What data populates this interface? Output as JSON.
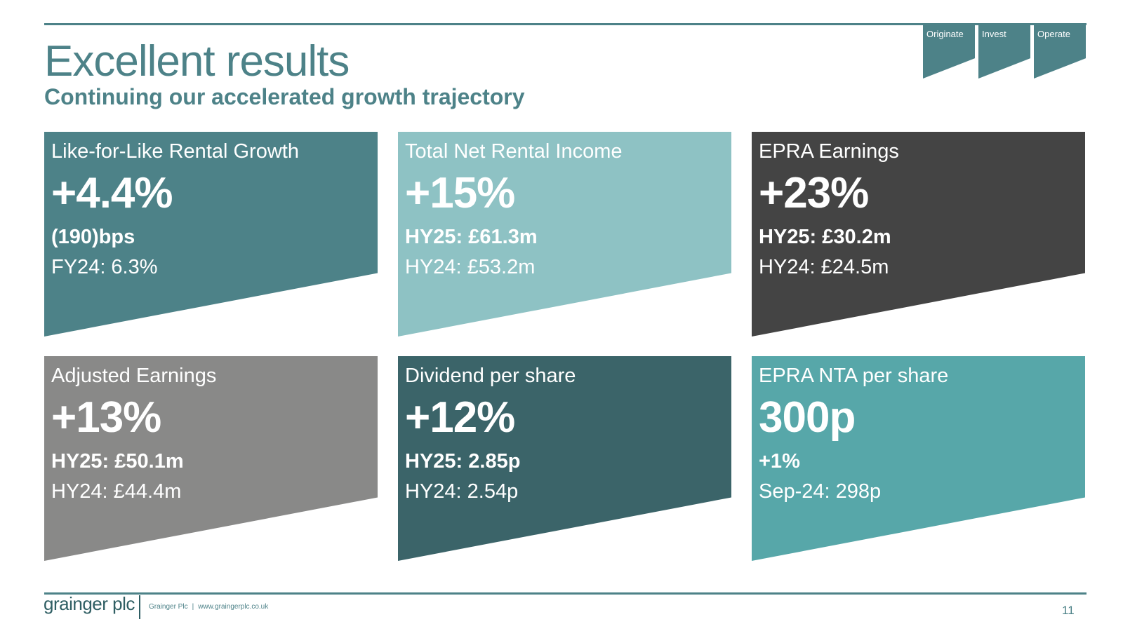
{
  "header": {
    "title": "Excellent results",
    "subtitle": "Continuing our accelerated growth trajectory",
    "tabs": [
      {
        "label": "Originate"
      },
      {
        "label": "Invest"
      },
      {
        "label": "Operate"
      }
    ]
  },
  "colors": {
    "accent": "#4d8288",
    "card_1": "#4d8288",
    "card_2": "#8ec2c4",
    "card_3": "#444444",
    "card_4": "#898988",
    "card_5": "#3b6469",
    "card_6": "#57a7a9"
  },
  "cards": [
    {
      "label": "Like-for-Like Rental Growth",
      "value": "+4.4%",
      "line1": "(190)bps",
      "line2": "FY24: 6.3%"
    },
    {
      "label": "Total Net Rental Income",
      "value": "+15%",
      "line1": "HY25: £61.3m",
      "line2": "HY24: £53.2m"
    },
    {
      "label": "EPRA Earnings",
      "value": "+23%",
      "line1": "HY25: £30.2m",
      "line2": "HY24: £24.5m"
    },
    {
      "label": "Adjusted Earnings",
      "value": "+13%",
      "line1": "HY25: £50.1m",
      "line2": "HY24: £44.4m"
    },
    {
      "label": "Dividend per share",
      "value": "+12%",
      "line1": "HY25: 2.85p",
      "line2": "HY24: 2.54p"
    },
    {
      "label": "EPRA NTA per share",
      "value": "300p",
      "line1": "+1%",
      "line2": "Sep-24: 298p"
    }
  ],
  "footer": {
    "logo_text": "grainger plc",
    "company": "Grainger Plc",
    "separator": "|",
    "website": "www.graingerplc.co.uk",
    "page_number": "11"
  }
}
